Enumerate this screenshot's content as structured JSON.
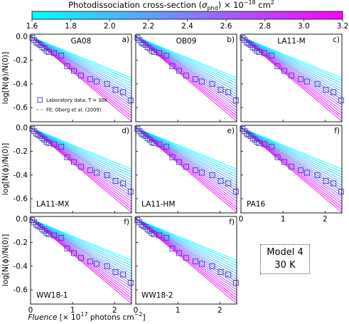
{
  "colorbar": {
    "title_html": "Photodissociation cross-section (<tspan font-style='italic'>σ</tspan><tspan dy='3' font-size='8'>phd</tspan><tspan dy='-3'>) × 10</tspan><tspan dy='-5' font-size='8'>−18</tspan><tspan dy='5'> cm</tspan><tspan dy='-5' font-size='8'>2</tspan>",
    "min": 1.6,
    "max": 3.2,
    "ticks": [
      "1.6",
      "1.8",
      "2.0",
      "2.2",
      "2.4",
      "2.6",
      "2.8",
      "3.0",
      "3.2"
    ],
    "color_low": "#00ffff",
    "color_high": "#ff00ff"
  },
  "axes": {
    "xlim": [
      0,
      2.4
    ],
    "ylim": [
      -0.72,
      0.02
    ],
    "xticks": [
      "0",
      "1",
      "2"
    ],
    "yticks": [
      "0.0",
      "-0.2",
      "-0.4",
      "-0.6"
    ],
    "ylabel": "log[N(ϕ)/N(0)]",
    "xlabel_html": "<tspan font-style='italic'>Fluence</tspan><tspan> [× 10</tspan><tspan dy='-5' font-size='8'>17</tspan><tspan dy='5'> photons cm</tspan><tspan dy='-5' font-size='8'>−2</tspan><tspan dy='5'>]</tspan>"
  },
  "legend": {
    "lab_label": "Laboratory data: T = 30K",
    "fit_label": "Fit: Oberg et al. (2009)",
    "marker_color": "#3a3ac8",
    "fit_color": "#999999"
  },
  "model_box": {
    "line1": "Model 4",
    "line2": "30 K"
  },
  "chart_data": {
    "type": "line",
    "description_free": true,
    "lab_data": {
      "x": [
        0.04,
        0.09,
        0.14,
        0.18,
        0.23,
        0.28,
        0.33,
        0.38,
        0.43,
        0.56,
        0.73,
        0.87,
        1.03,
        1.2,
        1.42,
        1.57,
        1.82,
        2.02,
        2.2,
        2.38
      ],
      "y": [
        -0.01,
        -0.03,
        -0.05,
        -0.06,
        -0.07,
        -0.09,
        -0.1,
        -0.12,
        -0.13,
        -0.14,
        -0.16,
        -0.25,
        -0.29,
        -0.33,
        -0.36,
        -0.38,
        -0.4,
        -0.45,
        -0.47,
        -0.54
      ]
    },
    "model_lines": {
      "sigma_values": [
        1.6,
        1.7,
        1.8,
        1.9,
        2.0,
        2.1,
        2.2,
        2.3,
        2.4,
        2.5,
        2.6,
        2.7,
        2.8,
        2.9,
        3.0,
        3.1,
        3.2
      ],
      "slopes": [
        -0.146,
        -0.155,
        -0.165,
        -0.174,
        -0.184,
        -0.193,
        -0.203,
        -0.212,
        -0.222,
        -0.231,
        -0.241,
        -0.25,
        -0.26,
        -0.269,
        -0.279,
        -0.288,
        -0.298
      ]
    },
    "fit_slope": -0.22,
    "panels": [
      {
        "label": "GA08",
        "letter": "a)",
        "label_pos": "top"
      },
      {
        "label": "OB09",
        "letter": "b)",
        "label_pos": "top"
      },
      {
        "label": "LA11-M",
        "letter": "c)",
        "label_pos": "top"
      },
      {
        "label": "LA11-MX",
        "letter": "d)",
        "label_pos": "bottom"
      },
      {
        "label": "LA11-HM",
        "letter": "e)",
        "label_pos": "bottom"
      },
      {
        "label": "PA16",
        "letter": "f)",
        "label_pos": "bottom"
      },
      {
        "label": "WW18-1",
        "letter": "f)",
        "label_pos": "bottom"
      },
      {
        "label": "WW18-2",
        "letter": "f)",
        "label_pos": "bottom"
      }
    ]
  }
}
